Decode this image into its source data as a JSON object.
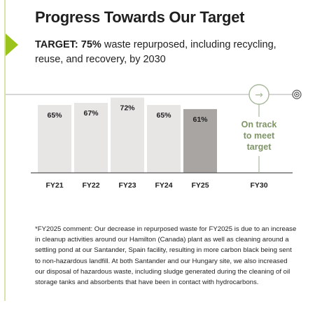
{
  "heading": "Progress Towards Our Target",
  "target": {
    "label": "TARGET: 75%",
    "text": " waste repurposed, including recycling, reuse, and recovery, by 2030"
  },
  "chart_data": {
    "type": "bar",
    "categories": [
      "FY21",
      "FY22",
      "FY23",
      "FY24",
      "FY25",
      "FY30"
    ],
    "values": [
      65,
      67,
      72,
      65,
      61,
      null
    ],
    "value_labels": [
      "65%",
      "67%",
      "72%",
      "65%",
      "61%",
      ""
    ],
    "target_value": 75,
    "target_category": "FY30",
    "target_labels": [
      "On track",
      "to meet",
      "target"
    ],
    "arrow_glyph": "→",
    "highlight_category": "FY25",
    "colors": {
      "bar": "#e8e5e5",
      "bar_highlight": "#a9a5a3",
      "target_green": "#a8b89a",
      "target_text": "#7e9466",
      "baseline": "#555555",
      "target_line": "#bdbdbd"
    },
    "xlabel": "",
    "ylabel": ""
  },
  "footnote": "*FY2025 comment: Our decrease in repurposed waste for FY2025 is due to an increase in cleanup activities around our Hamilton (Canada) plant as well as cleaning around a settling pond at our Santander, Spain facility, resulting in more carbon black being sent to non-hazardous landfill. At both Santander and our Hungary site, we also increased our disposal of hazardous waste, including sludge generated during the cleaning of oil storage tanks and absorbents that have been in contact with hydrocarbons."
}
